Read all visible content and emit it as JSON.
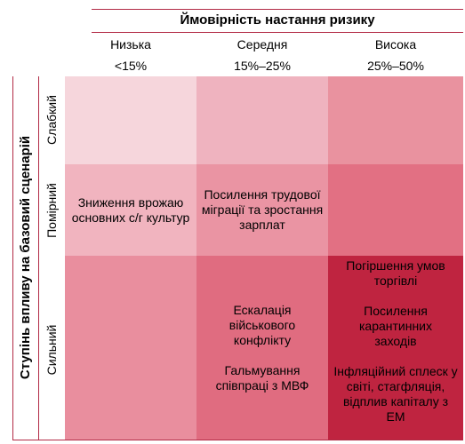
{
  "x_axis": {
    "title": "Ймовірність настання ризику",
    "columns": [
      {
        "name": "Низька",
        "range": "<15%"
      },
      {
        "name": "Середня",
        "range": "15%–25%"
      },
      {
        "name": "Висока",
        "range": "25%–50%"
      }
    ]
  },
  "y_axis": {
    "title": "Ступінь впливу на базовий сценарій",
    "rows": [
      "Слабкий",
      "Помірний",
      "Сильний"
    ]
  },
  "colors": {
    "weak_low": "#f6d6dc",
    "weak_mid": "#efb3bf",
    "weak_high": "#e9929f",
    "moderate_low": "#f1b4bf",
    "moderate_mid": "#ea94a3",
    "moderate_high": "#e27083",
    "strong_low": "#e98e9e",
    "strong_mid": "#e06c80",
    "strong_high": "#bf2440",
    "rule": "#b22a45"
  },
  "cells": {
    "moderate_low": "Зниження врожаю основних с/г культур",
    "moderate_mid": "Посилення трудової міграції та зростання зарплат",
    "strong_mid_1": "Ескалація військового конфлікту",
    "strong_mid_2": "Гальмування співпраці з МВФ",
    "strong_high_1": "Погіршення умов торгівлі",
    "strong_high_2": "Посилення карантинних заходів",
    "strong_high_3": "Інфляційний сплеск у світі, стагфляція, відплив капіталу з ЕМ"
  }
}
